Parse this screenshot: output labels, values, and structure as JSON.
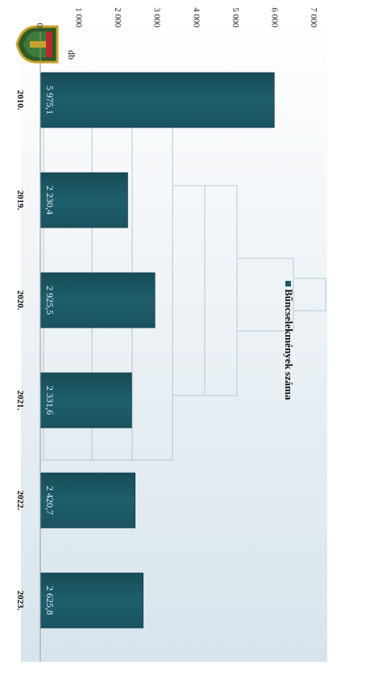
{
  "chart_data": {
    "type": "bar",
    "orientation": "vertical",
    "categories": [
      "2010.",
      "2019.",
      "2020.",
      "2021.",
      "2022.",
      "2023."
    ],
    "series": [
      {
        "name": "Bűncselekmények száma",
        "values": [
          5975.1,
          2230.4,
          2925.5,
          2331.6,
          2420.7,
          2625.8
        ],
        "labels": [
          "5 975,1",
          "2 230,4",
          "2 925,5",
          "2 331,6",
          "2 420,7",
          "2 625,8"
        ],
        "color": "#1f5a66"
      }
    ],
    "yticks": [
      "0",
      "1 000",
      "2 000",
      "3 000",
      "4 000",
      "5 000",
      "6 000",
      "7 000"
    ],
    "ylabel": "db",
    "ylim": [
      0,
      7000
    ],
    "legend": "top-right",
    "grid": false
  }
}
